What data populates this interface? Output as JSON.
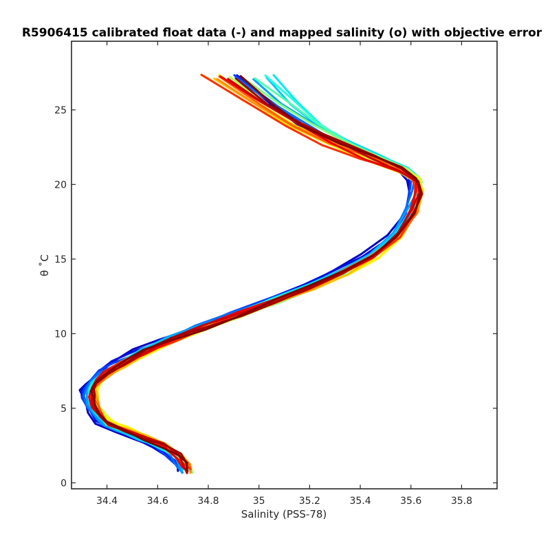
{
  "chart_data": {
    "type": "line",
    "title": "R5906415 calibrated float data (-) and mapped salinity (o) with objective error",
    "xlabel": "Salinity (PSS-78)",
    "ylabel": "θ ˚C",
    "xlim": [
      34.26,
      35.94
    ],
    "ylim": [
      -0.4,
      29.6
    ],
    "x_ticks": [
      34.4,
      34.6,
      34.8,
      35.0,
      35.2,
      35.4,
      35.6,
      35.8
    ],
    "x_tick_labels": [
      "34.4",
      "34.6",
      "34.8",
      "35",
      "35.2",
      "35.4",
      "35.6",
      "35.8"
    ],
    "y_ticks": [
      0,
      5,
      10,
      15,
      20,
      25
    ],
    "y_tick_labels": [
      "0",
      "5",
      "10",
      "15",
      "20",
      "25"
    ],
    "grid": false,
    "colormap": "jet",
    "base_profile": {
      "salinity": [
        34.72,
        34.71,
        34.68,
        34.62,
        34.55,
        34.46,
        34.4,
        34.37,
        34.35,
        34.34,
        34.34,
        34.36,
        34.4,
        34.46,
        34.55,
        34.66,
        34.78,
        34.92,
        35.06,
        35.2,
        35.33,
        35.45,
        35.55,
        35.61,
        35.63,
        35.62,
        35.56,
        35.44,
        35.3,
        35.16,
        35.02,
        34.88
      ],
      "theta": [
        0.8,
        1.2,
        1.8,
        2.5,
        3.0,
        3.6,
        4.0,
        4.6,
        5.2,
        5.8,
        6.3,
        6.8,
        7.4,
        8.0,
        8.8,
        9.6,
        10.4,
        11.3,
        12.2,
        13.1,
        14.1,
        15.2,
        16.6,
        18.2,
        19.5,
        20.3,
        21.0,
        21.8,
        22.8,
        24.0,
        25.5,
        27.2
      ]
    },
    "series": [
      {
        "color": "#0000c8",
        "offset": -0.04,
        "top_shift": 0.08
      },
      {
        "color": "#0010e0",
        "offset": -0.035,
        "top_shift": 0.07
      },
      {
        "color": "#0040ff",
        "offset": -0.03,
        "top_shift": 0.06
      },
      {
        "color": "#0070ff",
        "offset": -0.025,
        "top_shift": 0.06
      },
      {
        "color": "#00a0ff",
        "offset": -0.02,
        "top_shift": 0.12
      },
      {
        "color": "#00c8ff",
        "offset": -0.015,
        "top_shift": 0.16
      },
      {
        "color": "#00e8f0",
        "offset": -0.01,
        "top_shift": 0.18
      },
      {
        "color": "#20ffdf",
        "offset": 0.0,
        "top_shift": 0.14
      },
      {
        "color": "#50ffb0",
        "offset": 0.005,
        "top_shift": 0.1
      },
      {
        "color": "#80ff80",
        "offset": 0.01,
        "top_shift": 0.06
      },
      {
        "color": "#b0ff50",
        "offset": 0.012,
        "top_shift": 0.0
      },
      {
        "color": "#e0ff20",
        "offset": 0.015,
        "top_shift": -0.05
      },
      {
        "color": "#ffee00",
        "offset": 0.018,
        "top_shift": -0.12
      },
      {
        "color": "#ffc000",
        "offset": 0.015,
        "top_shift": -0.08
      },
      {
        "color": "#ff9000",
        "offset": 0.01,
        "top_shift": -0.06
      },
      {
        "color": "#ff6000",
        "offset": 0.005,
        "top_shift": -0.04
      },
      {
        "color": "#ff3000",
        "offset": 0.0,
        "top_shift": -0.1
      },
      {
        "color": "#f00000",
        "offset": -0.005,
        "top_shift": -0.02
      },
      {
        "color": "#c80000",
        "offset": 0.0,
        "top_shift": 0.0
      },
      {
        "color": "#a00000",
        "offset": 0.005,
        "top_shift": 0.02
      },
      {
        "color": "#800000",
        "offset": 0.0,
        "top_shift": 0.04
      }
    ]
  }
}
